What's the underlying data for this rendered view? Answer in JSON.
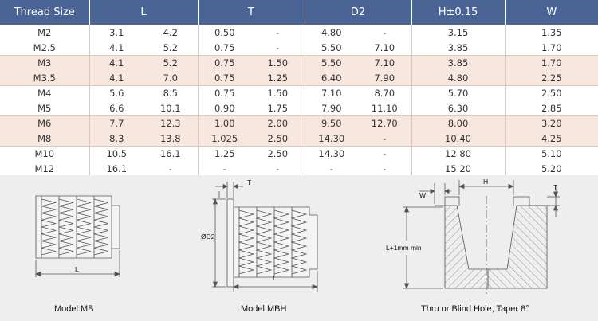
{
  "table": {
    "headers": [
      "Thread Size",
      "L",
      "T",
      "D2",
      "H±0.15",
      "W"
    ],
    "rows": [
      {
        "thread": "M2",
        "l1": "3.1",
        "l2": "4.2",
        "t1": "0.50",
        "t2": "-",
        "d1": "4.80",
        "d2": "-",
        "h": "3.15",
        "w": "1.35"
      },
      {
        "thread": "M2.5",
        "l1": "4.1",
        "l2": "5.2",
        "t1": "0.75",
        "t2": "-",
        "d1": "5.50",
        "d2": "7.10",
        "h": "3.85",
        "w": "1.70"
      },
      {
        "thread": "M3",
        "l1": "4.1",
        "l2": "5.2",
        "t1": "0.75",
        "t2": "1.50",
        "d1": "5.50",
        "d2": "7.10",
        "h": "3.85",
        "w": "1.70"
      },
      {
        "thread": "M3.5",
        "l1": "4.1",
        "l2": "7.0",
        "t1": "0.75",
        "t2": "1.25",
        "d1": "6.40",
        "d2": "7.90",
        "h": "4.80",
        "w": "2.25"
      },
      {
        "thread": "M4",
        "l1": "5.6",
        "l2": "8.5",
        "t1": "0.75",
        "t2": "1.50",
        "d1": "7.10",
        "d2": "8.70",
        "h": "5.70",
        "w": "2.50"
      },
      {
        "thread": "M5",
        "l1": "6.6",
        "l2": "10.1",
        "t1": "0.90",
        "t2": "1.75",
        "d1": "7.90",
        "d2": "11.10",
        "h": "6.30",
        "w": "2.85"
      },
      {
        "thread": "M6",
        "l1": "7.7",
        "l2": "12.3",
        "t1": "1.00",
        "t2": "2.00",
        "d1": "9.50",
        "d2": "12.70",
        "h": "8.00",
        "w": "3.20"
      },
      {
        "thread": "M8",
        "l1": "8.3",
        "l2": "13.8",
        "t1": "1.025",
        "t2": "2.50",
        "d1": "14.30",
        "d2": "-",
        "h": "10.40",
        "w": "4.25"
      },
      {
        "thread": "M10",
        "l1": "10.5",
        "l2": "16.1",
        "t1": "1.25",
        "t2": "2.50",
        "d1": "14.30",
        "d2": "-",
        "h": "12.80",
        "w": "5.10"
      },
      {
        "thread": "M12",
        "l1": "16.1",
        "l2": "-",
        "t1": "-",
        "t2": "-",
        "d1": "-",
        "d2": "-",
        "h": "15.20",
        "w": "5.20"
      }
    ]
  },
  "figures": {
    "mb": {
      "caption": "Model:MB",
      "dim_l": "L"
    },
    "mbh": {
      "caption": "Model:MBH",
      "dim_t": "T",
      "dim_d2": "ØD2",
      "dim_l": "L"
    },
    "hole": {
      "caption": "Thru or Blind Hole, Taper 8°",
      "dim_w": "W",
      "dim_h": "H",
      "dim_t": "T",
      "dim_depth": "L+1mm min"
    }
  },
  "colors": {
    "header_bg": "#4a6496",
    "band": "#f7e7df",
    "figure_bg": "#eeeeee"
  }
}
